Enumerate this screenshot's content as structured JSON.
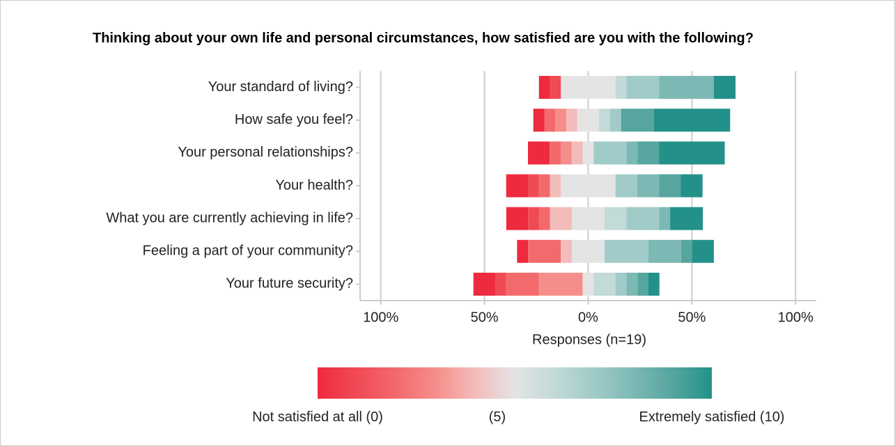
{
  "chart_data": {
    "type": "diverging_bar",
    "title": "Thinking about your own life and personal circumstances, how satisfied are you with the following?",
    "xlabel": "Responses (n=19)",
    "categories": [
      "Your standard of living?",
      "How safe you feel?",
      "Your personal relationships?",
      "Your health?",
      "What you are currently achieving in life?",
      "Feeling a part of your community?",
      "Your future security?"
    ],
    "series": [
      {
        "color": "#ee2a3f",
        "values": [
          5.3,
          5.3,
          10.5,
          10.5,
          10.5,
          5.3,
          10.5
        ]
      },
      {
        "color": "#f04a55",
        "values": [
          5.3,
          0,
          0,
          5.3,
          5.3,
          0,
          5.3
        ]
      },
      {
        "color": "#f36a6c",
        "values": [
          0,
          5.3,
          5.3,
          5.3,
          5.3,
          15.8,
          15.8
        ]
      },
      {
        "color": "#f58e8b",
        "values": [
          0,
          5.3,
          5.3,
          0,
          0,
          0,
          21.1
        ]
      },
      {
        "color": "#f3bcbb",
        "values": [
          0,
          5.3,
          5.3,
          5.3,
          10.5,
          5.3,
          0
        ]
      },
      {
        "color": "#e4e4e4",
        "values": [
          26.3,
          10.5,
          5.3,
          26.3,
          15.8,
          15.8,
          5.3
        ]
      },
      {
        "color": "#c2dad8",
        "values": [
          5.3,
          5.3,
          0,
          0,
          10.5,
          0,
          10.5
        ]
      },
      {
        "color": "#a1cbc8",
        "values": [
          15.8,
          5.3,
          15.8,
          10.5,
          15.8,
          21.1,
          5.3
        ]
      },
      {
        "color": "#7db9b4",
        "values": [
          26.3,
          0,
          5.3,
          10.5,
          5.3,
          15.8,
          5.3
        ]
      },
      {
        "color": "#56a59f",
        "values": [
          0,
          15.8,
          10.5,
          10.5,
          0,
          5.3,
          5.3
        ]
      },
      {
        "color": "#23918a",
        "values": [
          10.5,
          36.8,
          31.6,
          10.5,
          15.8,
          10.5,
          5.3
        ]
      }
    ],
    "xlim": [
      -110,
      110
    ],
    "xticks": [
      {
        "value": -100,
        "label": "100%"
      },
      {
        "value": -50,
        "label": "50%"
      },
      {
        "value": 0,
        "label": "0%"
      },
      {
        "value": 50,
        "label": "50%"
      },
      {
        "value": 100,
        "label": "100%"
      }
    ],
    "grid": true,
    "legend_labels": [
      "Not satisfied at all (0)",
      "(5)",
      "Extremely satisfied (10)"
    ]
  }
}
